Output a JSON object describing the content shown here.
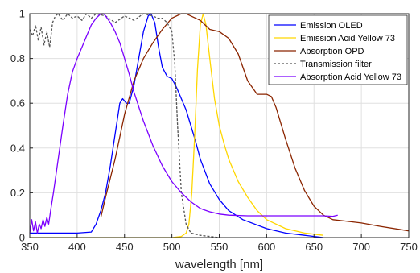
{
  "chart_data": {
    "type": "line",
    "title": "",
    "xlabel": "wavelength [nm]",
    "ylabel": "",
    "xlim": [
      350,
      750
    ],
    "ylim": [
      0,
      1
    ],
    "grid": true,
    "legend_position": "top-right",
    "x_ticks": [
      "350",
      "400",
      "450",
      "500",
      "550",
      "600",
      "650",
      "700",
      "750"
    ],
    "y_ticks": [
      "0",
      "0.2",
      "0.4",
      "0.6",
      "0.8",
      "1"
    ],
    "series": [
      {
        "name": "Emission OLED",
        "color": "#0000ff",
        "style": "solid",
        "x": [
          350,
          360,
          380,
          400,
          415,
          420,
          425,
          430,
          435,
          440,
          445,
          448,
          452,
          455,
          460,
          465,
          470,
          475,
          478,
          482,
          486,
          490,
          495,
          500,
          505,
          510,
          515,
          520,
          525,
          530,
          540,
          550,
          560,
          575,
          600,
          620,
          640,
          660
        ],
        "y": [
          0.02,
          0.02,
          0.02,
          0.02,
          0.025,
          0.06,
          0.12,
          0.2,
          0.32,
          0.46,
          0.6,
          0.62,
          0.6,
          0.6,
          0.68,
          0.8,
          0.92,
          0.99,
          1.0,
          0.96,
          0.85,
          0.76,
          0.72,
          0.71,
          0.67,
          0.62,
          0.57,
          0.5,
          0.43,
          0.35,
          0.24,
          0.17,
          0.12,
          0.08,
          0.04,
          0.02,
          0.01,
          0.0
        ]
      },
      {
        "name": "Emission Acid Yellow 73",
        "color": "#ffd700",
        "style": "solid",
        "x": [
          350,
          400,
          450,
          500,
          510,
          515,
          518,
          521,
          524,
          527,
          530,
          533,
          536,
          540,
          545,
          550,
          555,
          560,
          570,
          580,
          590,
          600,
          620,
          640,
          660
        ],
        "y": [
          0,
          0,
          0,
          0,
          0.005,
          0.02,
          0.06,
          0.2,
          0.45,
          0.75,
          0.95,
          1.0,
          0.95,
          0.8,
          0.62,
          0.5,
          0.42,
          0.35,
          0.25,
          0.18,
          0.12,
          0.08,
          0.04,
          0.02,
          0.01
        ]
      },
      {
        "name": "Absorption OPD",
        "color": "#8b2500",
        "style": "solid",
        "x": [
          425,
          430,
          440,
          450,
          460,
          470,
          480,
          490,
          500,
          510,
          515,
          520,
          530,
          540,
          550,
          560,
          570,
          580,
          590,
          600,
          605,
          610,
          620,
          630,
          640,
          650,
          660,
          670,
          680,
          700,
          720,
          750
        ],
        "y": [
          0.09,
          0.18,
          0.35,
          0.55,
          0.7,
          0.8,
          0.87,
          0.93,
          0.98,
          1.0,
          1.0,
          0.99,
          0.97,
          0.93,
          0.92,
          0.89,
          0.82,
          0.7,
          0.64,
          0.64,
          0.63,
          0.58,
          0.44,
          0.31,
          0.21,
          0.14,
          0.1,
          0.08,
          0.075,
          0.065,
          0.05,
          0.03
        ]
      },
      {
        "name": "Transmission filter",
        "color": "#555555",
        "style": "dashed",
        "x": [
          350,
          353,
          356,
          359,
          362,
          365,
          368,
          371,
          374,
          377,
          380,
          385,
          390,
          395,
          400,
          405,
          410,
          415,
          420,
          430,
          440,
          450,
          460,
          470,
          480,
          485,
          490,
          495,
          500,
          503,
          506,
          510,
          515,
          520,
          530,
          550
        ],
        "y": [
          0.93,
          0.9,
          0.95,
          0.88,
          0.94,
          0.86,
          0.92,
          0.85,
          0.96,
          0.99,
          1.0,
          0.97,
          1.0,
          0.98,
          0.99,
          0.97,
          1.0,
          0.98,
          1.0,
          0.99,
          0.96,
          0.99,
          0.97,
          1.0,
          0.99,
          0.98,
          0.98,
          0.96,
          0.92,
          0.78,
          0.5,
          0.2,
          0.06,
          0.02,
          0.01,
          0.0
        ]
      },
      {
        "name": "Absorption Acid Yellow 73",
        "color": "#7b00ff",
        "style": "solid",
        "x": [
          350,
          352,
          354,
          356,
          358,
          360,
          362,
          364,
          366,
          368,
          370,
          372,
          375,
          380,
          385,
          390,
          395,
          400,
          405,
          410,
          415,
          420,
          425,
          428,
          430,
          435,
          440,
          445,
          450,
          455,
          460,
          470,
          480,
          490,
          500,
          510,
          520,
          530,
          540,
          550,
          560,
          580,
          600,
          620,
          640,
          660,
          670,
          675
        ],
        "y": [
          0.02,
          0.08,
          0.03,
          0.07,
          0.02,
          0.06,
          0.04,
          0.08,
          0.05,
          0.09,
          0.06,
          0.12,
          0.2,
          0.35,
          0.5,
          0.64,
          0.74,
          0.8,
          0.85,
          0.9,
          0.95,
          0.98,
          1.0,
          1.0,
          0.99,
          0.96,
          0.92,
          0.87,
          0.8,
          0.73,
          0.65,
          0.52,
          0.41,
          0.32,
          0.25,
          0.2,
          0.16,
          0.13,
          0.115,
          0.105,
          0.1,
          0.097,
          0.097,
          0.097,
          0.097,
          0.097,
          0.095,
          0.1
        ]
      }
    ]
  }
}
